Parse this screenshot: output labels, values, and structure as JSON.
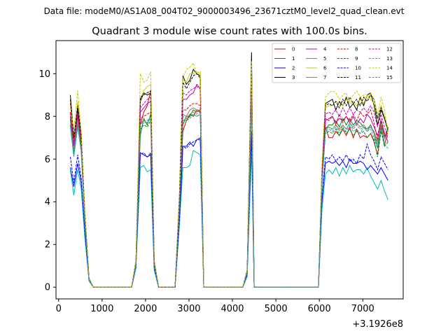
{
  "chart_data": {
    "type": "line",
    "suptitle": "Data file: modeM0/AS1A08_004T02_9000003496_23671cztM0_level2_quad_clean.evt",
    "title": "Quadrant 3 module wise count rates with 100.0s bins.",
    "xlabel": "",
    "ylabel": "",
    "x_offset_label": "+3.1926e8",
    "xlim": [
      -60,
      7930
    ],
    "ylim": [
      -0.55,
      11.55
    ],
    "xticks": [
      0,
      1000,
      2000,
      3000,
      4000,
      5000,
      6000,
      7000
    ],
    "xtick_labels": [
      "0",
      "1000",
      "2000",
      "3000",
      "4000",
      "5000",
      "6000",
      "7000"
    ],
    "yticks": [
      0,
      2,
      4,
      6,
      8,
      10
    ],
    "ytick_labels": [
      "0",
      "2",
      "4",
      "6",
      "8",
      "10"
    ],
    "legend_position": "upper right",
    "legend_columns": 4,
    "x": [
      270,
      350,
      440,
      520,
      600,
      700,
      800,
      1680,
      1780,
      1880,
      1960,
      2040,
      2120,
      2200,
      2300,
      2400,
      2680,
      2780,
      2860,
      2940,
      3020,
      3100,
      3180,
      3260,
      3340,
      3440,
      4240,
      4340,
      4440,
      4500,
      4600,
      4720,
      5980,
      6060,
      6140,
      6220,
      6300,
      6380,
      6460,
      6540,
      6620,
      6700,
      6780,
      6860,
      6940,
      7020,
      7100,
      7180,
      7260,
      7340,
      7420,
      7500,
      7580
    ],
    "series": [
      {
        "name": "0",
        "color": "#dd0000",
        "dash": "solid",
        "values": [
          8.6,
          7.0,
          8.4,
          7.0,
          3.5,
          0.4,
          0.0,
          0.0,
          1.2,
          7.6,
          8.2,
          8.5,
          9.2,
          1.2,
          0.0,
          0.0,
          0.0,
          4.0,
          7.3,
          7.8,
          8.1,
          8.0,
          8.3,
          8.2,
          0.0,
          0.0,
          0.0,
          0.8,
          9.1,
          0.0,
          0.0,
          0.0,
          0.0,
          5.0,
          7.5,
          7.0,
          7.0,
          7.3,
          7.1,
          7.4,
          7.1,
          7.5,
          7.0,
          7.4,
          7.0,
          7.1,
          7.0,
          7.2,
          6.8,
          6.2,
          7.5,
          6.6,
          7.5
        ]
      },
      {
        "name": "1",
        "color": "#008800",
        "dash": "solid",
        "values": [
          7.9,
          6.2,
          7.6,
          6.5,
          3.3,
          0.4,
          0.0,
          0.0,
          1.1,
          7.1,
          7.9,
          7.6,
          8.1,
          1.0,
          0.0,
          0.0,
          0.0,
          3.8,
          7.6,
          8.0,
          8.0,
          8.3,
          8.2,
          8.3,
          0.0,
          0.0,
          0.0,
          0.7,
          8.9,
          0.0,
          0.0,
          0.0,
          0.0,
          4.9,
          7.4,
          7.6,
          7.6,
          7.8,
          7.5,
          7.9,
          7.6,
          7.9,
          7.6,
          7.8,
          7.7,
          7.5,
          7.4,
          7.6,
          7.2,
          6.5,
          7.8,
          7.0,
          7.5
        ]
      },
      {
        "name": "2",
        "color": "#0000ff",
        "dash": "solid",
        "values": [
          5.6,
          4.7,
          5.8,
          4.9,
          2.6,
          0.3,
          0.0,
          0.0,
          0.9,
          6.3,
          6.2,
          6.1,
          6.2,
          0.9,
          0.0,
          0.0,
          0.0,
          3.0,
          6.6,
          6.6,
          6.8,
          6.6,
          6.9,
          7.0,
          0.0,
          0.0,
          0.0,
          0.6,
          7.1,
          0.0,
          0.0,
          0.0,
          0.0,
          4.0,
          5.8,
          5.9,
          5.8,
          5.9,
          5.7,
          5.9,
          5.6,
          6.0,
          5.8,
          5.8,
          5.9,
          5.8,
          5.5,
          5.7,
          5.5,
          5.3,
          5.6,
          5.3,
          5.0
        ]
      },
      {
        "name": "3",
        "color": "#000000",
        "dash": "solid",
        "values": [
          9.0,
          7.0,
          8.3,
          7.2,
          3.6,
          0.4,
          0.0,
          0.0,
          1.2,
          8.7,
          9.1,
          9.0,
          9.1,
          1.2,
          0.0,
          0.0,
          0.0,
          4.2,
          9.9,
          9.5,
          9.7,
          10.2,
          10.0,
          9.9,
          0.0,
          0.0,
          0.0,
          0.8,
          11.0,
          0.0,
          0.0,
          0.0,
          0.0,
          5.5,
          8.6,
          8.7,
          8.8,
          8.3,
          8.7,
          8.5,
          8.9,
          8.4,
          8.6,
          8.3,
          8.9,
          8.5,
          9.0,
          9.1,
          8.5,
          7.6,
          8.3,
          7.9,
          7.3
        ]
      },
      {
        "name": "4",
        "color": "#bb00bb",
        "dash": "solid",
        "values": [
          8.2,
          6.6,
          8.0,
          6.8,
          3.4,
          0.4,
          0.0,
          0.0,
          1.2,
          8.2,
          8.4,
          8.6,
          8.7,
          1.1,
          0.0,
          0.0,
          0.0,
          4.0,
          8.8,
          8.8,
          9.0,
          9.1,
          9.5,
          9.3,
          0.0,
          0.0,
          0.0,
          0.8,
          9.9,
          0.0,
          0.0,
          0.0,
          0.0,
          5.1,
          7.8,
          7.9,
          8.0,
          7.7,
          7.9,
          7.8,
          8.0,
          7.7,
          8.0,
          7.6,
          7.9,
          7.7,
          8.1,
          7.9,
          7.5,
          7.1,
          7.8,
          7.2,
          6.8
        ]
      },
      {
        "name": "5",
        "color": "#00bbbb",
        "dash": "solid",
        "values": [
          5.5,
          4.3,
          5.5,
          4.6,
          2.4,
          0.3,
          0.0,
          0.0,
          0.9,
          5.6,
          5.7,
          5.4,
          5.5,
          0.8,
          0.0,
          0.0,
          0.0,
          2.9,
          5.6,
          5.6,
          5.7,
          6.4,
          6.3,
          6.2,
          0.0,
          0.0,
          0.0,
          0.5,
          6.4,
          0.0,
          0.0,
          0.0,
          0.0,
          3.6,
          5.3,
          5.5,
          5.3,
          5.6,
          5.2,
          5.6,
          5.3,
          5.7,
          5.4,
          5.5,
          5.5,
          5.3,
          5.6,
          5.2,
          4.9,
          4.6,
          5.0,
          4.5,
          4.1
        ]
      },
      {
        "name": "6",
        "color": "#cccc00",
        "dash": "solid",
        "values": [
          8.7,
          6.9,
          8.7,
          7.1,
          3.6,
          0.4,
          0.0,
          0.0,
          1.2,
          8.8,
          9.2,
          9.4,
          9.5,
          1.2,
          0.0,
          0.0,
          0.0,
          4.2,
          9.7,
          9.6,
          10.0,
          10.0,
          10.1,
          10.0,
          0.0,
          0.0,
          0.0,
          0.8,
          10.4,
          0.0,
          0.0,
          0.0,
          0.0,
          5.4,
          8.4,
          8.5,
          8.5,
          8.7,
          8.6,
          8.5,
          8.8,
          8.6,
          8.7,
          8.5,
          8.8,
          8.6,
          9.0,
          8.8,
          8.6,
          7.9,
          8.5,
          8.0,
          7.4
        ]
      },
      {
        "name": "7",
        "color": "#808080",
        "dash": "solid",
        "values": [
          7.8,
          6.4,
          7.8,
          6.6,
          3.3,
          0.4,
          0.0,
          0.0,
          1.1,
          7.7,
          7.8,
          7.7,
          7.9,
          1.1,
          0.0,
          0.0,
          0.0,
          3.9,
          8.1,
          8.0,
          8.3,
          8.4,
          8.3,
          8.3,
          0.0,
          0.0,
          0.0,
          0.7,
          9.0,
          0.0,
          0.0,
          0.0,
          0.0,
          4.9,
          7.4,
          7.5,
          7.4,
          7.6,
          7.4,
          7.6,
          7.4,
          7.7,
          7.5,
          7.7,
          7.5,
          7.6,
          7.4,
          7.5,
          7.3,
          6.8,
          7.6,
          7.0,
          7.0
        ]
      },
      {
        "name": "8",
        "color": "#dd0000",
        "dash": "dashed",
        "values": [
          8.2,
          6.8,
          8.1,
          6.9,
          3.4,
          0.4,
          0.0,
          0.0,
          1.2,
          7.9,
          8.0,
          8.1,
          8.2,
          1.1,
          0.0,
          0.0,
          0.0,
          4.0,
          8.3,
          8.3,
          8.5,
          8.6,
          8.6,
          8.5,
          0.0,
          0.0,
          0.0,
          0.8,
          9.5,
          0.0,
          0.0,
          0.0,
          0.0,
          5.1,
          7.9,
          7.8,
          8.0,
          7.6,
          8.1,
          7.7,
          8.0,
          7.8,
          8.1,
          7.8,
          8.2,
          8.0,
          8.1,
          8.3,
          7.7,
          6.9,
          7.9,
          7.1,
          7.2
        ]
      },
      {
        "name": "9",
        "color": "#008800",
        "dash": "dashed",
        "values": [
          7.6,
          6.2,
          7.6,
          6.4,
          3.2,
          0.4,
          0.0,
          0.0,
          1.1,
          7.4,
          7.6,
          7.5,
          7.8,
          1.0,
          0.0,
          0.0,
          0.0,
          3.8,
          7.8,
          7.8,
          8.0,
          8.1,
          8.0,
          8.1,
          0.0,
          0.0,
          0.0,
          0.7,
          8.7,
          0.0,
          0.0,
          0.0,
          0.0,
          4.8,
          7.2,
          7.3,
          7.2,
          7.4,
          7.1,
          7.5,
          7.2,
          7.4,
          7.1,
          7.3,
          7.2,
          7.3,
          7.0,
          7.2,
          6.9,
          6.1,
          7.3,
          6.6,
          6.8
        ]
      },
      {
        "name": "10",
        "color": "#0000ff",
        "dash": "dashed",
        "values": [
          6.1,
          4.9,
          6.2,
          5.1,
          2.7,
          0.3,
          0.0,
          0.0,
          1.0,
          6.2,
          6.3,
          6.1,
          6.3,
          0.9,
          0.0,
          0.0,
          0.0,
          3.1,
          6.6,
          6.5,
          6.7,
          6.8,
          6.9,
          6.9,
          0.0,
          0.0,
          0.0,
          0.6,
          7.3,
          0.0,
          0.0,
          0.0,
          0.0,
          4.1,
          6.1,
          6.0,
          6.2,
          5.9,
          6.1,
          5.9,
          6.2,
          5.9,
          6.0,
          5.8,
          6.2,
          6.0,
          6.7,
          6.2,
          5.9,
          5.5,
          6.1,
          5.8,
          5.5
        ]
      },
      {
        "name": "11",
        "color": "#000000",
        "dash": "dashed",
        "values": [
          8.8,
          7.0,
          8.5,
          7.1,
          3.6,
          0.4,
          0.0,
          0.0,
          1.2,
          8.9,
          9.0,
          9.1,
          9.2,
          1.2,
          0.0,
          0.0,
          0.0,
          4.2,
          9.6,
          9.3,
          9.6,
          9.9,
          10.0,
          9.8,
          0.0,
          0.0,
          0.0,
          0.8,
          10.6,
          0.0,
          0.0,
          0.0,
          0.0,
          5.4,
          8.5,
          8.6,
          8.5,
          8.7,
          8.4,
          8.8,
          8.5,
          8.9,
          8.6,
          8.8,
          8.5,
          8.9,
          8.7,
          9.0,
          8.8,
          7.9,
          8.4,
          7.9,
          7.4
        ]
      },
      {
        "name": "12",
        "color": "#bb00bb",
        "dash": "dashed",
        "values": [
          8.0,
          6.6,
          8.2,
          6.7,
          3.4,
          0.4,
          0.0,
          0.0,
          1.1,
          8.4,
          8.6,
          8.8,
          8.9,
          1.2,
          0.0,
          0.0,
          0.0,
          4.1,
          9.1,
          9.0,
          9.2,
          9.3,
          9.4,
          9.3,
          0.0,
          0.0,
          0.0,
          0.8,
          9.8,
          0.0,
          0.0,
          0.0,
          0.0,
          5.2,
          8.1,
          8.2,
          8.1,
          8.3,
          8.0,
          8.4,
          8.1,
          8.4,
          8.1,
          8.3,
          8.2,
          8.4,
          8.2,
          8.5,
          8.2,
          7.5,
          8.1,
          7.5,
          7.0
        ]
      },
      {
        "name": "13",
        "color": "#00bbbb",
        "dash": "dashed",
        "values": [
          7.5,
          6.1,
          7.5,
          6.3,
          3.1,
          0.3,
          0.0,
          0.0,
          1.1,
          7.5,
          7.7,
          7.7,
          7.9,
          1.0,
          0.0,
          0.0,
          0.0,
          3.8,
          7.9,
          7.8,
          7.9,
          8.1,
          8.0,
          8.1,
          0.0,
          0.0,
          0.0,
          0.7,
          8.7,
          0.0,
          0.0,
          0.0,
          0.0,
          4.7,
          7.3,
          7.4,
          7.3,
          7.5,
          7.2,
          7.4,
          7.3,
          7.6,
          7.3,
          7.4,
          7.2,
          7.5,
          7.3,
          7.4,
          7.0,
          6.5,
          7.4,
          6.7,
          6.5
        ]
      },
      {
        "name": "14",
        "color": "#cccc00",
        "dash": "dashed",
        "values": [
          8.4,
          7.4,
          9.2,
          7.3,
          3.7,
          0.4,
          0.0,
          0.0,
          1.3,
          10.0,
          9.6,
          9.7,
          10.1,
          1.3,
          0.0,
          0.0,
          0.0,
          4.5,
          9.8,
          10.2,
          10.3,
          10.5,
          10.0,
          10.1,
          0.0,
          0.0,
          0.0,
          0.8,
          10.6,
          0.0,
          0.0,
          0.0,
          0.0,
          5.6,
          8.9,
          9.1,
          9.2,
          9.1,
          8.8,
          9.0,
          9.1,
          8.7,
          9.0,
          9.2,
          8.9,
          9.0,
          8.8,
          9.1,
          8.8,
          8.1,
          8.9,
          8.3,
          7.2
        ]
      },
      {
        "name": "15",
        "color": "#808080",
        "dash": "dashed",
        "values": [
          7.8,
          6.3,
          7.7,
          6.5,
          3.2,
          0.4,
          0.0,
          0.0,
          1.1,
          7.6,
          7.8,
          7.8,
          8.0,
          1.1,
          0.0,
          0.0,
          0.0,
          3.9,
          8.0,
          7.9,
          8.1,
          8.2,
          8.1,
          8.2,
          0.0,
          0.0,
          0.0,
          0.7,
          8.9,
          0.0,
          0.0,
          0.0,
          0.0,
          4.8,
          7.4,
          7.5,
          7.4,
          7.6,
          7.3,
          7.6,
          7.4,
          7.7,
          7.4,
          7.6,
          7.4,
          7.5,
          7.3,
          7.5,
          7.2,
          6.7,
          7.6,
          6.8,
          6.9
        ]
      }
    ]
  }
}
